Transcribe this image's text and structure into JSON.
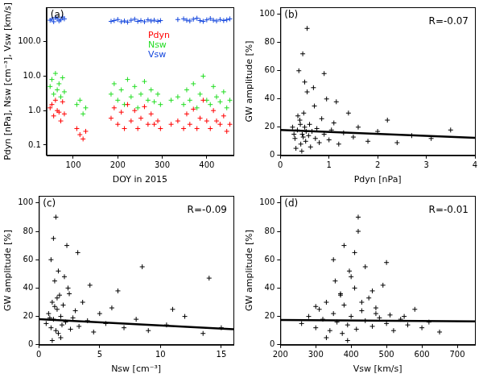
{
  "chart_data": [
    {
      "type": "scatter",
      "title": "(a)",
      "x_label": "DOY in 2015",
      "y_label": "Pdyn [nPa], Nsw [cm⁻³], Vsw [km/s]",
      "log": "y",
      "grid": false,
      "legend": "upper center",
      "xlim": [
        40,
        460
      ],
      "xticks": [
        100,
        200,
        300,
        400
      ],
      "ylim": [
        0.05,
        1000
      ],
      "yticks": [
        {
          "value": 0.1,
          "label": "0.1"
        },
        {
          "value": 1,
          "label": "1.0"
        },
        {
          "value": 10,
          "label": "10.0"
        },
        {
          "value": 100,
          "label": "100.0"
        }
      ],
      "x": [
        48,
        52,
        56,
        60,
        64,
        68,
        72,
        76,
        80,
        108,
        115,
        122,
        128,
        185,
        192,
        200,
        208,
        215,
        222,
        230,
        238,
        245,
        252,
        260,
        268,
        275,
        282,
        290,
        296,
        320,
        335,
        348,
        355,
        362,
        370,
        378,
        385,
        392,
        400,
        408,
        415,
        422,
        430,
        438,
        445,
        452
      ],
      "series": [
        {
          "name": "Pdyn",
          "color": "#ff0000",
          "marker": "cross",
          "values": [
            1.2,
            1.5,
            0.7,
            2,
            1,
            0.9,
            0.5,
            1.8,
            0.8,
            0.3,
            0.2,
            0.15,
            0.25,
            0.6,
            1.2,
            0.4,
            0.9,
            0.3,
            1.5,
            0.5,
            1,
            0.3,
            0.6,
            1.3,
            0.4,
            0.8,
            0.4,
            0.5,
            0.3,
            0.4,
            0.5,
            0.3,
            0.8,
            0.4,
            1.1,
            0.3,
            0.6,
            2,
            0.5,
            0.3,
            1,
            0.5,
            0.4,
            0.7,
            0.25,
            0.4
          ]
        },
        {
          "name": "Nsw",
          "color": "#22dd22",
          "marker": "cross",
          "values": [
            5,
            8,
            3,
            12,
            4,
            6,
            2.5,
            9,
            3.5,
            1.5,
            2,
            0.8,
            1.2,
            3,
            6,
            2,
            4,
            1.5,
            8,
            2.5,
            5,
            1.2,
            3,
            7,
            2,
            4,
            1.8,
            3,
            1.5,
            2,
            2.5,
            1.5,
            4,
            2,
            6,
            1.2,
            3,
            10,
            2,
            1.5,
            5,
            2.5,
            1.8,
            3.5,
            1.2,
            2
          ]
        },
        {
          "name": "Vsw",
          "color": "#1144dd",
          "marker": "cross",
          "values": [
            420,
            450,
            380,
            500,
            470,
            400,
            430,
            520,
            460,
            null,
            null,
            null,
            null,
            390,
            410,
            440,
            380,
            400,
            370,
            420,
            450,
            390,
            410,
            380,
            430,
            400,
            420,
            390,
            410,
            null,
            440,
            460,
            420,
            400,
            450,
            480,
            410,
            390,
            430,
            470,
            420,
            400,
            440,
            410,
            430,
            460
          ]
        }
      ]
    },
    {
      "type": "scatter",
      "title": "(b)",
      "annotation": "R=-0.07",
      "x_label": "Pdyn [nPa]",
      "y_label": "GW amplitude [%]",
      "grid": false,
      "xlim": [
        0,
        4
      ],
      "xticks": [
        0,
        1,
        2,
        3,
        4
      ],
      "ylim": [
        0,
        105
      ],
      "yticks": [
        0,
        20,
        40,
        60,
        80,
        100
      ],
      "series": [
        {
          "type": "scatter",
          "color": "#000000",
          "marker": "cross",
          "x": [
            0.3,
            0.35,
            0.4,
            0.42,
            0.45,
            0.48,
            0.5,
            0.52,
            0.55,
            0.58,
            0.6,
            0.62,
            0.65,
            0.7,
            0.72,
            0.75,
            0.8,
            0.85,
            0.9,
            0.95,
            1.0,
            1.05,
            1.1,
            1.2,
            1.3,
            1.4,
            1.5,
            1.6,
            1.8,
            2.0,
            2.2,
            2.4,
            2.7,
            3.1,
            3.5,
            0.38,
            0.46,
            0.55,
            0.32,
            0.44,
            0.5,
            0.68,
            0.9,
            1.15,
            0.25,
            0.28,
            0.36,
            0.41,
            0.47,
            0.53
          ],
          "values": [
            12,
            18,
            25,
            8,
            15,
            30,
            20,
            10,
            45,
            14,
            22,
            6,
            17,
            35,
            12,
            19,
            9,
            26,
            15,
            40,
            11,
            18,
            23,
            8,
            16,
            30,
            13,
            20,
            10,
            17,
            25,
            9,
            14,
            12,
            18,
            60,
            72,
            90,
            5,
            3,
            52,
            48,
            58,
            38,
            20,
            15,
            28,
            22,
            13,
            17
          ]
        },
        {
          "type": "line",
          "color": "#000000",
          "line_style": "solid",
          "x": [
            0,
            4
          ],
          "values": [
            18,
            12.5
          ]
        }
      ]
    },
    {
      "type": "scatter",
      "title": "(c)",
      "annotation": "R=-0.09",
      "x_label": "Nsw [cm⁻³]",
      "y_label": "GW amplitude [%]",
      "grid": false,
      "xlim": [
        0,
        16
      ],
      "xticks": [
        0,
        5,
        10,
        15
      ],
      "ylim": [
        0,
        105
      ],
      "yticks": [
        0,
        20,
        40,
        60,
        80,
        100
      ],
      "series": [
        {
          "type": "scatter",
          "color": "#000000",
          "marker": "cross",
          "x": [
            0.6,
            0.8,
            1.0,
            1.1,
            1.2,
            1.3,
            1.4,
            1.5,
            1.6,
            1.7,
            1.8,
            1.9,
            2.0,
            2.2,
            2.4,
            2.6,
            2.8,
            3.0,
            3.3,
            3.6,
            4.0,
            4.5,
            5.0,
            5.5,
            6.0,
            7.0,
            8.0,
            9.0,
            10.5,
            12.0,
            13.5,
            15.0,
            1.0,
            1.2,
            1.4,
            1.6,
            1.8,
            2.1,
            2.5,
            3.2,
            4.2,
            1.1,
            1.3,
            1.5,
            0.9,
            6.5,
            8.5,
            11.0,
            14.0,
            2.3
          ],
          "values": [
            15,
            22,
            12,
            30,
            18,
            45,
            10,
            25,
            8,
            35,
            20,
            14,
            28,
            16,
            40,
            11,
            19,
            24,
            13,
            30,
            17,
            9,
            22,
            15,
            26,
            12,
            18,
            10,
            14,
            20,
            8,
            12,
            60,
            75,
            90,
            52,
            5,
            48,
            36,
            65,
            42,
            3,
            27,
            33,
            19,
            38,
            55,
            25,
            47,
            70
          ]
        },
        {
          "type": "line",
          "color": "#000000",
          "line_style": "solid",
          "x": [
            0,
            16
          ],
          "values": [
            18,
            11
          ]
        }
      ]
    },
    {
      "type": "scatter",
      "title": "(d)",
      "annotation": "R=-0.01",
      "x_label": "Vsw [km/s]",
      "y_label": "GW amplitude [%]",
      "grid": false,
      "xlim": [
        200,
        750
      ],
      "xticks": [
        200,
        300,
        400,
        500,
        600,
        700
      ],
      "ylim": [
        0,
        105
      ],
      "yticks": [
        0,
        20,
        40,
        60,
        80,
        100
      ],
      "series": [
        {
          "type": "scatter",
          "color": "#000000",
          "marker": "cross",
          "x": [
            260,
            280,
            300,
            310,
            320,
            330,
            340,
            350,
            355,
            360,
            370,
            375,
            380,
            390,
            395,
            400,
            410,
            415,
            420,
            430,
            440,
            450,
            460,
            470,
            480,
            490,
            500,
            510,
            520,
            540,
            560,
            580,
            600,
            620,
            650,
            350,
            380,
            400,
            420,
            440,
            460,
            500,
            330,
            390,
            410,
            430,
            470,
            550,
            300,
            370
          ],
          "values": [
            15,
            20,
            12,
            25,
            18,
            30,
            10,
            22,
            45,
            16,
            35,
            8,
            28,
            14,
            52,
            20,
            40,
            11,
            90,
            24,
            17,
            33,
            13,
            26,
            19,
            42,
            15,
            21,
            10,
            18,
            14,
            25,
            12,
            16,
            9,
            60,
            70,
            48,
            80,
            55,
            38,
            58,
            5,
            3,
            65,
            30,
            22,
            20,
            27,
            36
          ]
        },
        {
          "type": "line",
          "color": "#000000",
          "line_style": "solid",
          "x": [
            200,
            750
          ],
          "values": [
            17.5,
            16.5
          ]
        }
      ]
    }
  ]
}
